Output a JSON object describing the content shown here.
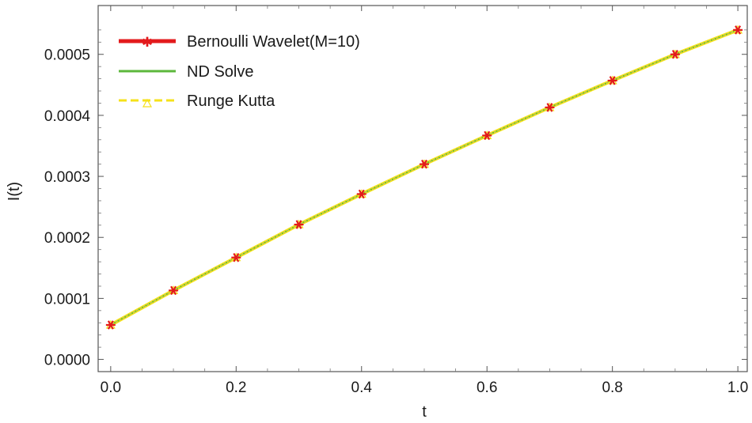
{
  "chart_data": {
    "type": "line",
    "xlabel": "t",
    "ylabel": "I(t)",
    "xlim": [
      -0.02,
      1.015
    ],
    "ylim": [
      -2e-05,
      0.00058
    ],
    "xticks": [
      0.0,
      0.2,
      0.4,
      0.6,
      0.8,
      1.0
    ],
    "xtick_labels": [
      "0.0",
      "0.2",
      "0.4",
      "0.6",
      "0.8",
      "1.0"
    ],
    "yticks": [
      0.0,
      0.0001,
      0.0002,
      0.0003,
      0.0004,
      0.0005
    ],
    "ytick_labels": [
      "0.0000",
      "0.0001",
      "0.0002",
      "0.0003",
      "0.0004",
      "0.0005"
    ],
    "legend_position": "top-left",
    "grid": false,
    "x": [
      0.0,
      0.1,
      0.2,
      0.3,
      0.4,
      0.5,
      0.6,
      0.7,
      0.8,
      0.9,
      1.0
    ],
    "series": [
      {
        "name": "Bernoulli Wavelet(M=10)",
        "color": "#e31a1c",
        "style": "markers",
        "values": [
          5.65e-05,
          0.000113,
          0.000167,
          0.000221,
          0.000271,
          0.00032,
          0.000367,
          0.000413,
          0.000457,
          0.0005,
          0.00054
        ]
      },
      {
        "name": "ND Solve",
        "color": "#5cb83c",
        "style": "solid",
        "values": [
          5.65e-05,
          0.000113,
          0.000167,
          0.000221,
          0.000271,
          0.00032,
          0.000367,
          0.000413,
          0.000457,
          0.0005,
          0.00054
        ]
      },
      {
        "name": "Runge Kutta",
        "color": "#f5e11a",
        "style": "dashed",
        "values": [
          5.65e-05,
          0.000113,
          0.000167,
          0.000221,
          0.000271,
          0.00032,
          0.000367,
          0.000413,
          0.000457,
          0.0005,
          0.00054
        ]
      }
    ]
  }
}
